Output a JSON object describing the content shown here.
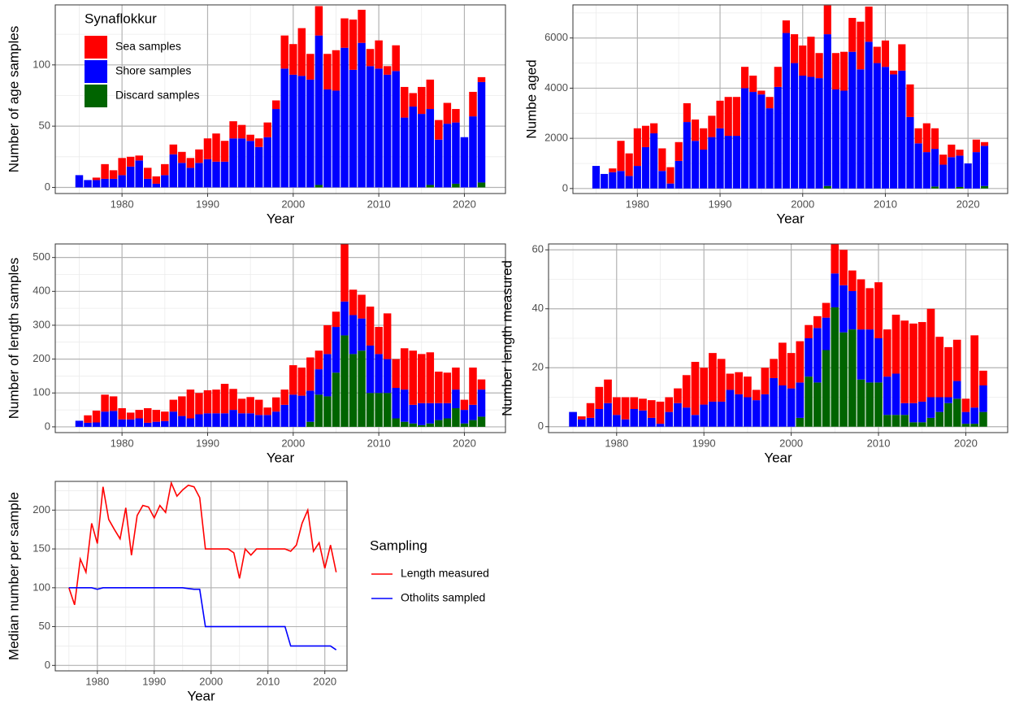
{
  "chart_data": [
    {
      "type": "bar",
      "stacked": true,
      "y_label": "Number of age samples",
      "x_label": "Year",
      "legend_title": "Synaflokkur",
      "grid": true,
      "x": [
        1975,
        1976,
        1977,
        1978,
        1979,
        1980,
        1981,
        1982,
        1983,
        1984,
        1985,
        1986,
        1987,
        1988,
        1989,
        1990,
        1991,
        1992,
        1993,
        1994,
        1995,
        1996,
        1997,
        1998,
        1999,
        2000,
        2001,
        2002,
        2003,
        2004,
        2005,
        2006,
        2007,
        2008,
        2009,
        2010,
        2011,
        2012,
        2013,
        2014,
        2015,
        2016,
        2017,
        2018,
        2019,
        2020,
        2021,
        2022
      ],
      "xlim": [
        1972.2,
        2024.8
      ],
      "xticks": [
        1980,
        1990,
        2000,
        2010,
        2020
      ],
      "ylim": [
        -5,
        149
      ],
      "yticks": [
        0,
        50,
        100
      ],
      "series": [
        {
          "name": "Sea samples",
          "color": "#ff0000",
          "values": [
            0,
            0,
            2,
            12,
            7,
            14,
            8,
            4,
            9,
            6,
            9,
            8,
            9,
            8,
            11,
            17,
            23,
            17,
            14,
            11,
            5,
            7,
            12,
            7,
            27,
            25,
            39,
            21,
            24,
            29,
            33,
            24,
            41,
            27,
            14,
            23,
            7,
            21,
            25,
            11,
            22,
            24,
            16,
            17,
            11,
            0,
            20,
            4
          ]
        },
        {
          "name": "Shore samples",
          "color": "#0000ff",
          "values": [
            10,
            6,
            6,
            7,
            7,
            10,
            17,
            22,
            7,
            3,
            10,
            27,
            20,
            16,
            20,
            23,
            21,
            21,
            40,
            40,
            38,
            33,
            41,
            64,
            97,
            92,
            91,
            88,
            122,
            80,
            79,
            114,
            96,
            118,
            99,
            97,
            92,
            95,
            57,
            66,
            60,
            62,
            39,
            52,
            50,
            41,
            58,
            82
          ]
        },
        {
          "name": "Discard samples",
          "color": "#006400",
          "values": [
            0,
            0,
            0,
            0,
            0,
            0,
            0,
            0,
            0,
            0,
            0,
            0,
            0,
            0,
            0,
            0,
            0,
            0,
            0,
            0,
            0,
            0,
            0,
            0,
            0,
            0,
            0,
            0,
            2,
            0,
            0,
            0,
            0,
            0,
            0,
            0,
            0,
            0,
            0,
            0,
            0,
            2,
            0,
            0,
            3,
            0,
            0,
            4
          ]
        }
      ]
    },
    {
      "type": "bar",
      "stacked": true,
      "y_label": "Numbe aged",
      "x_label": "Year",
      "grid": true,
      "x": [
        1975,
        1976,
        1977,
        1978,
        1979,
        1980,
        1981,
        1982,
        1983,
        1984,
        1985,
        1986,
        1987,
        1988,
        1989,
        1990,
        1991,
        1992,
        1993,
        1994,
        1995,
        1996,
        1997,
        1998,
        1999,
        2000,
        2001,
        2002,
        2003,
        2004,
        2005,
        2006,
        2007,
        2008,
        2009,
        2010,
        2011,
        2012,
        2013,
        2014,
        2015,
        2016,
        2017,
        2018,
        2019,
        2020,
        2021,
        2022
      ],
      "xlim": [
        1972.2,
        2024.8
      ],
      "xticks": [
        1980,
        1990,
        2000,
        2010,
        2020
      ],
      "ylim": [
        -200,
        7320
      ],
      "yticks": [
        0,
        2000,
        4000,
        6000
      ],
      "series": [
        {
          "color": "#ff0000",
          "values": [
            0,
            0,
            150,
            1200,
            900,
            1500,
            850,
            400,
            900,
            650,
            750,
            750,
            850,
            850,
            850,
            1100,
            1550,
            1550,
            850,
            650,
            150,
            450,
            800,
            500,
            1150,
            1200,
            1600,
            1000,
            1150,
            1450,
            1550,
            1350,
            1900,
            1400,
            650,
            1050,
            150,
            1050,
            1300,
            600,
            1150,
            820,
            400,
            500,
            240,
            0,
            500,
            150
          ]
        },
        {
          "color": "#0000ff",
          "values": [
            900,
            580,
            650,
            700,
            500,
            900,
            1650,
            2200,
            700,
            200,
            1100,
            2650,
            1900,
            1550,
            2050,
            2400,
            2100,
            2100,
            4000,
            3850,
            3750,
            3200,
            4050,
            6200,
            5000,
            4500,
            4450,
            4400,
            6050,
            3950,
            3900,
            5450,
            4750,
            5850,
            5000,
            4850,
            4550,
            4700,
            2850,
            1800,
            1450,
            1500,
            950,
            1250,
            1250,
            1000,
            1450,
            1600
          ]
        },
        {
          "color": "#006400",
          "values": [
            0,
            0,
            0,
            0,
            0,
            0,
            0,
            0,
            0,
            0,
            0,
            0,
            0,
            0,
            0,
            0,
            0,
            0,
            0,
            0,
            0,
            0,
            0,
            0,
            0,
            0,
            0,
            0,
            100,
            0,
            0,
            0,
            0,
            0,
            0,
            0,
            0,
            0,
            0,
            0,
            0,
            80,
            0,
            0,
            60,
            0,
            0,
            100
          ]
        }
      ]
    },
    {
      "type": "bar",
      "stacked": true,
      "y_label": "Number of length samples",
      "x_label": "Year",
      "grid": true,
      "x": [
        1975,
        1976,
        1977,
        1978,
        1979,
        1980,
        1981,
        1982,
        1983,
        1984,
        1985,
        1986,
        1987,
        1988,
        1989,
        1990,
        1991,
        1992,
        1993,
        1994,
        1995,
        1996,
        1997,
        1998,
        1999,
        2000,
        2001,
        2002,
        2003,
        2004,
        2005,
        2006,
        2007,
        2008,
        2009,
        2010,
        2011,
        2012,
        2013,
        2014,
        2015,
        2016,
        2017,
        2018,
        2019,
        2020,
        2021,
        2022
      ],
      "xlim": [
        1972.2,
        2024.8
      ],
      "xticks": [
        1980,
        1990,
        2000,
        2010,
        2020
      ],
      "ylim": [
        -17,
        540
      ],
      "yticks": [
        0,
        100,
        200,
        300,
        400,
        500
      ],
      "series": [
        {
          "color": "#ff0000",
          "values": [
            0,
            22,
            35,
            50,
            43,
            33,
            20,
            25,
            43,
            35,
            28,
            35,
            58,
            85,
            63,
            68,
            70,
            87,
            62,
            43,
            48,
            45,
            22,
            42,
            45,
            87,
            83,
            98,
            55,
            85,
            45,
            170,
            75,
            70,
            115,
            80,
            135,
            85,
            122,
            160,
            145,
            150,
            93,
            90,
            65,
            30,
            110,
            30
          ]
        },
        {
          "color": "#0000ff",
          "values": [
            18,
            12,
            13,
            45,
            47,
            22,
            22,
            25,
            12,
            15,
            17,
            45,
            32,
            25,
            37,
            40,
            40,
            40,
            50,
            40,
            40,
            35,
            35,
            45,
            65,
            95,
            92,
            92,
            75,
            125,
            135,
            100,
            115,
            95,
            140,
            115,
            100,
            90,
            95,
            55,
            65,
            60,
            50,
            45,
            55,
            40,
            45,
            80
          ]
        },
        {
          "color": "#006400",
          "values": [
            0,
            0,
            0,
            0,
            0,
            0,
            0,
            0,
            0,
            0,
            0,
            0,
            0,
            0,
            0,
            0,
            0,
            0,
            0,
            0,
            0,
            0,
            0,
            0,
            0,
            0,
            0,
            15,
            95,
            90,
            160,
            270,
            215,
            225,
            100,
            100,
            100,
            25,
            15,
            10,
            5,
            10,
            20,
            25,
            55,
            10,
            20,
            30
          ]
        }
      ]
    },
    {
      "type": "bar",
      "stacked": true,
      "y_label": "Number length measured",
      "x_label": "Year",
      "grid": true,
      "x": [
        1975,
        1976,
        1977,
        1978,
        1979,
        1980,
        1981,
        1982,
        1983,
        1984,
        1985,
        1986,
        1987,
        1988,
        1989,
        1990,
        1991,
        1992,
        1993,
        1994,
        1995,
        1996,
        1997,
        1998,
        1999,
        2000,
        2001,
        2002,
        2003,
        2004,
        2005,
        2006,
        2007,
        2008,
        2009,
        2010,
        2011,
        2012,
        2013,
        2014,
        2015,
        2016,
        2017,
        2018,
        2019,
        2020,
        2021,
        2022
      ],
      "xlim": [
        1972.2,
        2024.8
      ],
      "xticks": [
        1980,
        1990,
        2000,
        2010,
        2020
      ],
      "ylim": [
        -2,
        62
      ],
      "yticks": [
        0,
        20,
        40,
        60
      ],
      "series": [
        {
          "color": "#ff0000",
          "values": [
            0,
            1,
            5,
            7.5,
            8,
            6,
            7.5,
            4,
            4,
            6,
            7.5,
            5,
            5,
            11,
            18,
            12.5,
            16.5,
            14.5,
            5.5,
            7.5,
            7,
            3.5,
            9,
            6.5,
            14.5,
            12,
            14,
            4.5,
            4,
            5,
            10,
            12,
            7,
            17,
            14,
            19,
            16,
            20,
            28,
            27,
            27,
            30,
            20.5,
            17,
            14,
            4.5,
            24.5,
            5
          ]
        },
        {
          "color": "#0000ff",
          "values": [
            5,
            2.5,
            3,
            6,
            8,
            4,
            2.5,
            6,
            5.5,
            3,
            1,
            5,
            8,
            6.5,
            4,
            7.5,
            8.5,
            8.5,
            12.5,
            11,
            10,
            9,
            11,
            16.5,
            14,
            13,
            12,
            13,
            18.5,
            11,
            11.5,
            16,
            13,
            17,
            18,
            15,
            13,
            14,
            4,
            6.5,
            7,
            7,
            5,
            2,
            6,
            4,
            5.5,
            9
          ]
        },
        {
          "color": "#006400",
          "values": [
            0,
            0,
            0,
            0,
            0,
            0,
            0,
            0,
            0,
            0,
            0,
            0,
            0,
            0,
            0,
            0,
            0,
            0,
            0,
            0,
            0,
            0,
            0,
            0,
            0,
            0,
            3,
            17,
            15,
            26,
            40.5,
            32,
            33,
            16,
            15,
            15,
            4,
            4,
            4,
            1.5,
            1.5,
            3,
            5,
            8,
            9.5,
            1,
            1,
            5
          ]
        }
      ]
    },
    {
      "type": "line",
      "y_label": "Median number per sample",
      "x_label": "Year",
      "legend_title": "Sampling",
      "grid": true,
      "x": [
        1975,
        1976,
        1977,
        1978,
        1979,
        1980,
        1981,
        1982,
        1983,
        1984,
        1985,
        1986,
        1987,
        1988,
        1989,
        1990,
        1991,
        1992,
        1993,
        1994,
        1995,
        1996,
        1997,
        1998,
        1999,
        2000,
        2001,
        2002,
        2003,
        2004,
        2005,
        2006,
        2007,
        2008,
        2009,
        2010,
        2011,
        2012,
        2013,
        2014,
        2015,
        2016,
        2017,
        2018,
        2019,
        2020,
        2021,
        2022
      ],
      "xlim": [
        1972.6,
        2023.9
      ],
      "xticks": [
        1980,
        1990,
        2000,
        2010,
        2020
      ],
      "ylim": [
        -7,
        237
      ],
      "yticks": [
        0,
        50,
        100,
        150,
        200
      ],
      "series": [
        {
          "name": "Length measured",
          "color": "#ff0000",
          "values": [
            100,
            78,
            137,
            120,
            183,
            157,
            230,
            188,
            175,
            163,
            203,
            142,
            193,
            206,
            204,
            190,
            206,
            197,
            235,
            218,
            226,
            232,
            230,
            216,
            150,
            150,
            150,
            150,
            150,
            145,
            112,
            150,
            142,
            150,
            150,
            150,
            150,
            150,
            150,
            147,
            155,
            183,
            200,
            147,
            158,
            125,
            155,
            120
          ]
        },
        {
          "name": "Otholits sampled",
          "color": "#0000ff",
          "values": [
            100,
            100,
            100,
            100,
            100,
            98,
            100,
            100,
            100,
            100,
            100,
            100,
            100,
            100,
            100,
            100,
            100,
            100,
            100,
            100,
            100,
            99,
            98,
            98,
            50,
            50,
            50,
            50,
            50,
            50,
            50,
            50,
            50,
            50,
            50,
            50,
            50,
            50,
            50,
            25,
            25,
            25,
            25,
            25,
            25,
            25,
            25,
            20
          ]
        }
      ]
    }
  ]
}
